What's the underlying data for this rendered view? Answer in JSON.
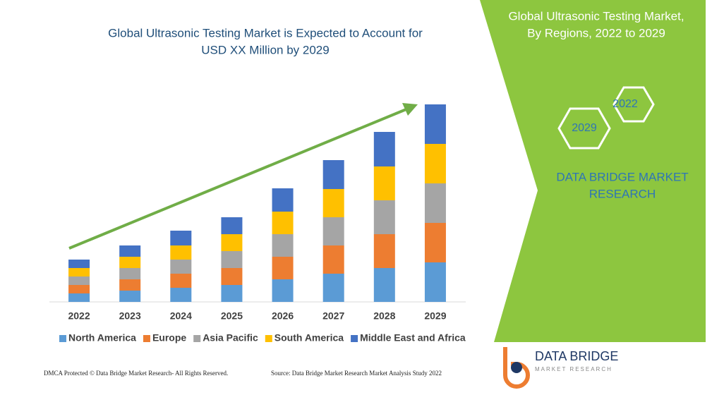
{
  "chart_data": {
    "type": "bar",
    "stacked": true,
    "title": [
      "Global Ultrasonic Testing Market is Expected to Account for",
      "USD XX Million by 2029"
    ],
    "categories": [
      "2022",
      "2023",
      "2024",
      "2025",
      "2026",
      "2027",
      "2028",
      "2029"
    ],
    "series": [
      {
        "name": "North America",
        "color": "#5b9bd5",
        "values": [
          12,
          16,
          20,
          24,
          32,
          40,
          48,
          56
        ]
      },
      {
        "name": "Europe",
        "color": "#ed7d31",
        "values": [
          12,
          16,
          20,
          24,
          32,
          40,
          48,
          56
        ]
      },
      {
        "name": "Asia Pacific",
        "color": "#a5a5a5",
        "values": [
          12,
          16,
          20,
          24,
          32,
          40,
          48,
          56
        ]
      },
      {
        "name": "South America",
        "color": "#ffc000",
        "values": [
          12,
          16,
          20,
          24,
          32,
          40,
          48,
          56
        ]
      },
      {
        "name": "Middle East and Africa",
        "color": "#4472c4",
        "values": [
          12,
          16,
          21,
          24,
          33,
          41,
          49,
          56
        ]
      }
    ],
    "ylim": [
      0,
      300
    ],
    "grid": false,
    "legend": "bottom"
  },
  "panel": {
    "title": [
      "Global Ultrasonic Testing Market,",
      "By Regions, 2022 to 2029"
    ],
    "hexagons": [
      "2022",
      "2029"
    ],
    "brand": [
      "DATA BRIDGE MARKET",
      "RESEARCH"
    ]
  },
  "logo": {
    "name": "DATA BRIDGE",
    "tagline": "MARKET RESEARCH"
  },
  "footer": {
    "left": "DMCA Protected © Data Bridge Market Research- All Rights Reserved.",
    "right": "Source: Data Bridge Market Research Market Analysis Study 2022"
  }
}
